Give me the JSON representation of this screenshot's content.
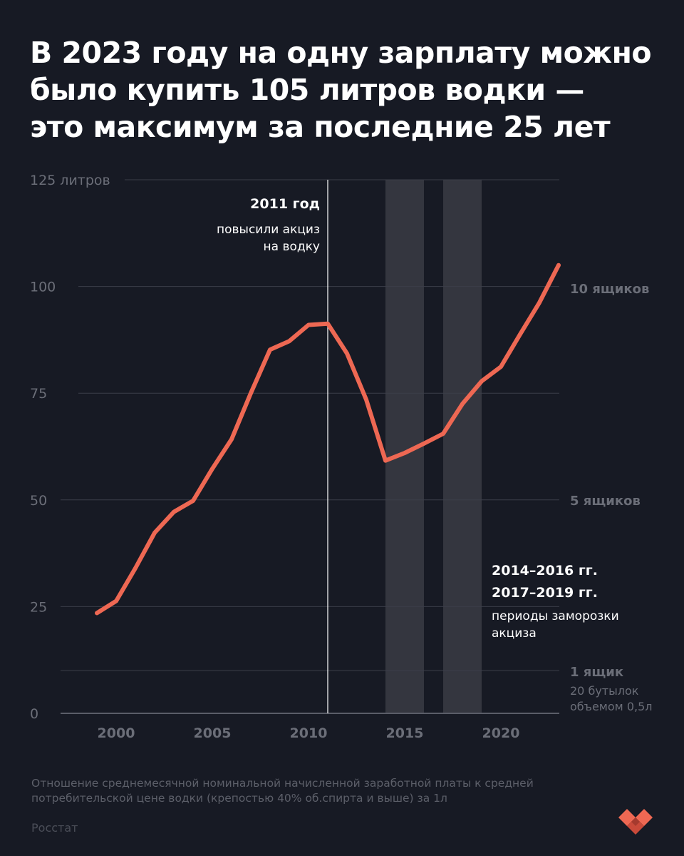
{
  "title": {
    "line1": "В 2023 году на одну зарплату можно",
    "line2": "было купить 105 литров водки —",
    "line3": "это максимум за последние 25 лет"
  },
  "chart_data": {
    "type": "line",
    "title": "В 2023 году на одну зарплату можно было купить 105 литров водки — это максимум за последние 25 лет",
    "ylabel": "литров",
    "xlabel": "",
    "ylim": [
      0,
      125
    ],
    "xlim": [
      1997,
      2024
    ],
    "y_ticks": [
      {
        "value": 0,
        "label": "0"
      },
      {
        "value": 25,
        "label": "25"
      },
      {
        "value": 50,
        "label": "50"
      },
      {
        "value": 75,
        "label": "75"
      },
      {
        "value": 100,
        "label": "100"
      },
      {
        "value": 125,
        "label": "125 литров"
      }
    ],
    "x_ticks": [
      {
        "value": 2000,
        "label": "2000"
      },
      {
        "value": 2005,
        "label": "2005"
      },
      {
        "value": 2010,
        "label": "2010"
      },
      {
        "value": 2015,
        "label": "2015"
      },
      {
        "value": 2020,
        "label": "2020"
      }
    ],
    "series": [
      {
        "name": "литров водки на одну зарплату",
        "color": "#ee6853",
        "x": [
          1999,
          2000,
          2001,
          2002,
          2003,
          2004,
          2005,
          2006,
          2007,
          2008,
          2009,
          2010,
          2011,
          2012,
          2013,
          2014,
          2015,
          2016,
          2017,
          2018,
          2019,
          2020,
          2021,
          2022,
          2023
        ],
        "y": [
          23.5,
          26.3,
          34.0,
          42.3,
          47.2,
          49.8,
          57.3,
          64.2,
          75.0,
          85.2,
          87.2,
          91.0,
          91.3,
          84.3,
          73.5,
          59.2,
          61.0,
          63.2,
          65.5,
          72.5,
          77.8,
          81.2,
          88.8,
          96.2,
          105.0
        ]
      }
    ],
    "shaded_periods": [
      {
        "from": 2014,
        "to": 2016
      },
      {
        "from": 2017,
        "to": 2019
      }
    ],
    "vertical_line": {
      "x": 2011
    },
    "right_axis": [
      {
        "value": 100,
        "label": "10 ящиков",
        "sublabel": []
      },
      {
        "value": 50,
        "label": "5 ящиков",
        "sublabel": []
      },
      {
        "value": 10,
        "label": "1 ящик",
        "sublabel": [
          "20 бутылок",
          "объемом 0,5л"
        ]
      }
    ],
    "annotations": {
      "excise": {
        "title": "2011 год",
        "lines": [
          "повысили акциз",
          "на водку"
        ]
      },
      "freeze": {
        "titles": [
          "2014–2016 гг.",
          "2017–2019 гг."
        ],
        "lines": [
          "периоды заморозки",
          "акциза"
        ]
      }
    }
  },
  "footnote": {
    "line1": "Отношение среднемесячной номинальной начисленной заработной платы к средней",
    "line2": "потребительской цене водки (крепостью 40% об.спирта и выше) за 1л"
  },
  "source": "Росстат",
  "colors": {
    "background": "#171a24",
    "line": "#ee6853",
    "grid": "#3b3e49",
    "shade": "#34363f",
    "muted": "#6b6e78"
  },
  "logo": {
    "icon": "heart-logo-icon"
  }
}
